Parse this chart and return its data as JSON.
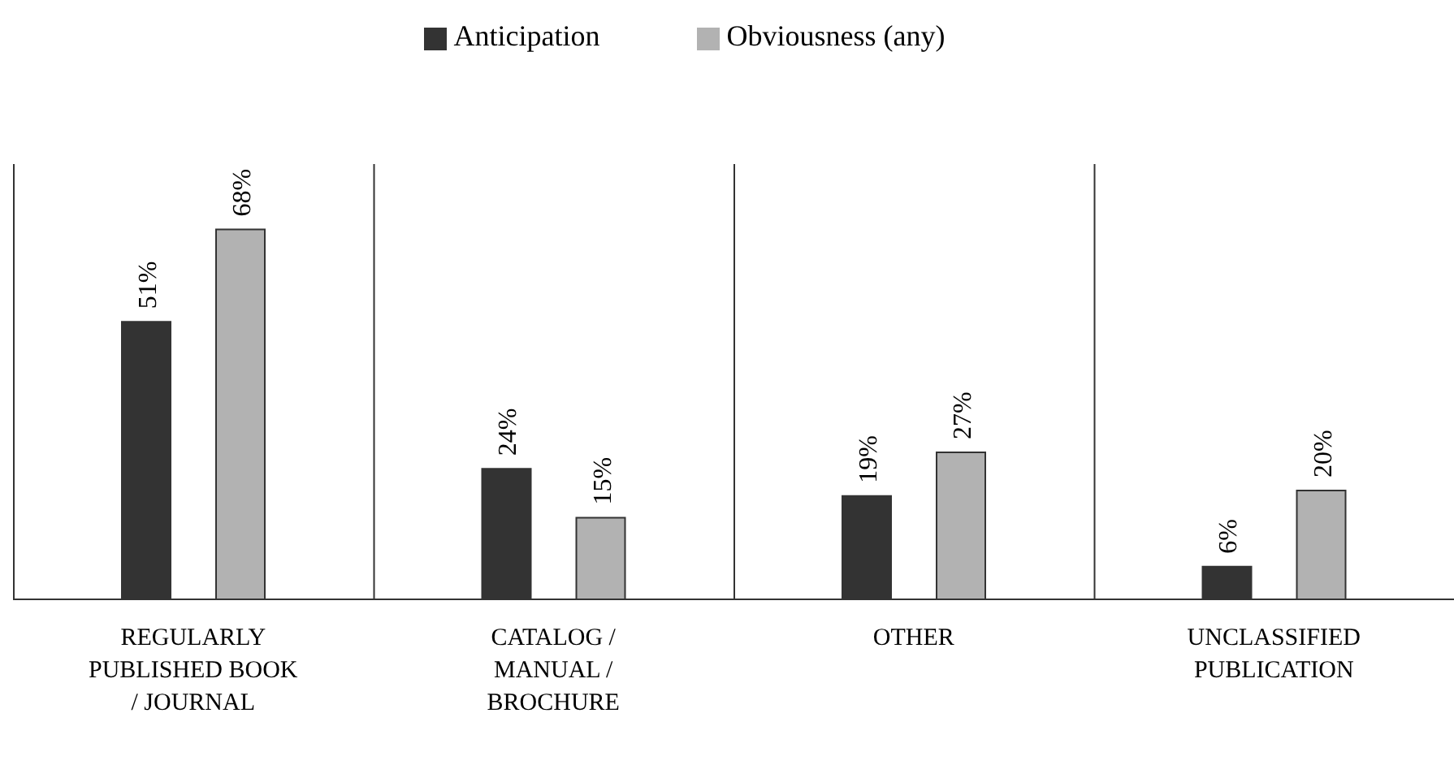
{
  "chart_data": {
    "type": "bar",
    "categories": [
      "REGULARLY PUBLISHED BOOK / JOURNAL",
      "CATALOG / MANUAL / BROCHURE",
      "OTHER",
      "UNCLASSIFIED PUBLICATION"
    ],
    "series": [
      {
        "name": "Anticipation",
        "color": "#333333",
        "values": [
          51,
          24,
          19,
          6
        ],
        "value_labels": [
          "51%",
          "24%",
          "19%",
          "6%"
        ]
      },
      {
        "name": "Obviousness (any)",
        "color": "#b2b2b2",
        "values": [
          68,
          15,
          27,
          20
        ],
        "value_labels": [
          "68%",
          "15%",
          "27%",
          "20%"
        ]
      }
    ],
    "ylim": [
      0,
      80
    ],
    "grid": "x",
    "legend": "top"
  }
}
